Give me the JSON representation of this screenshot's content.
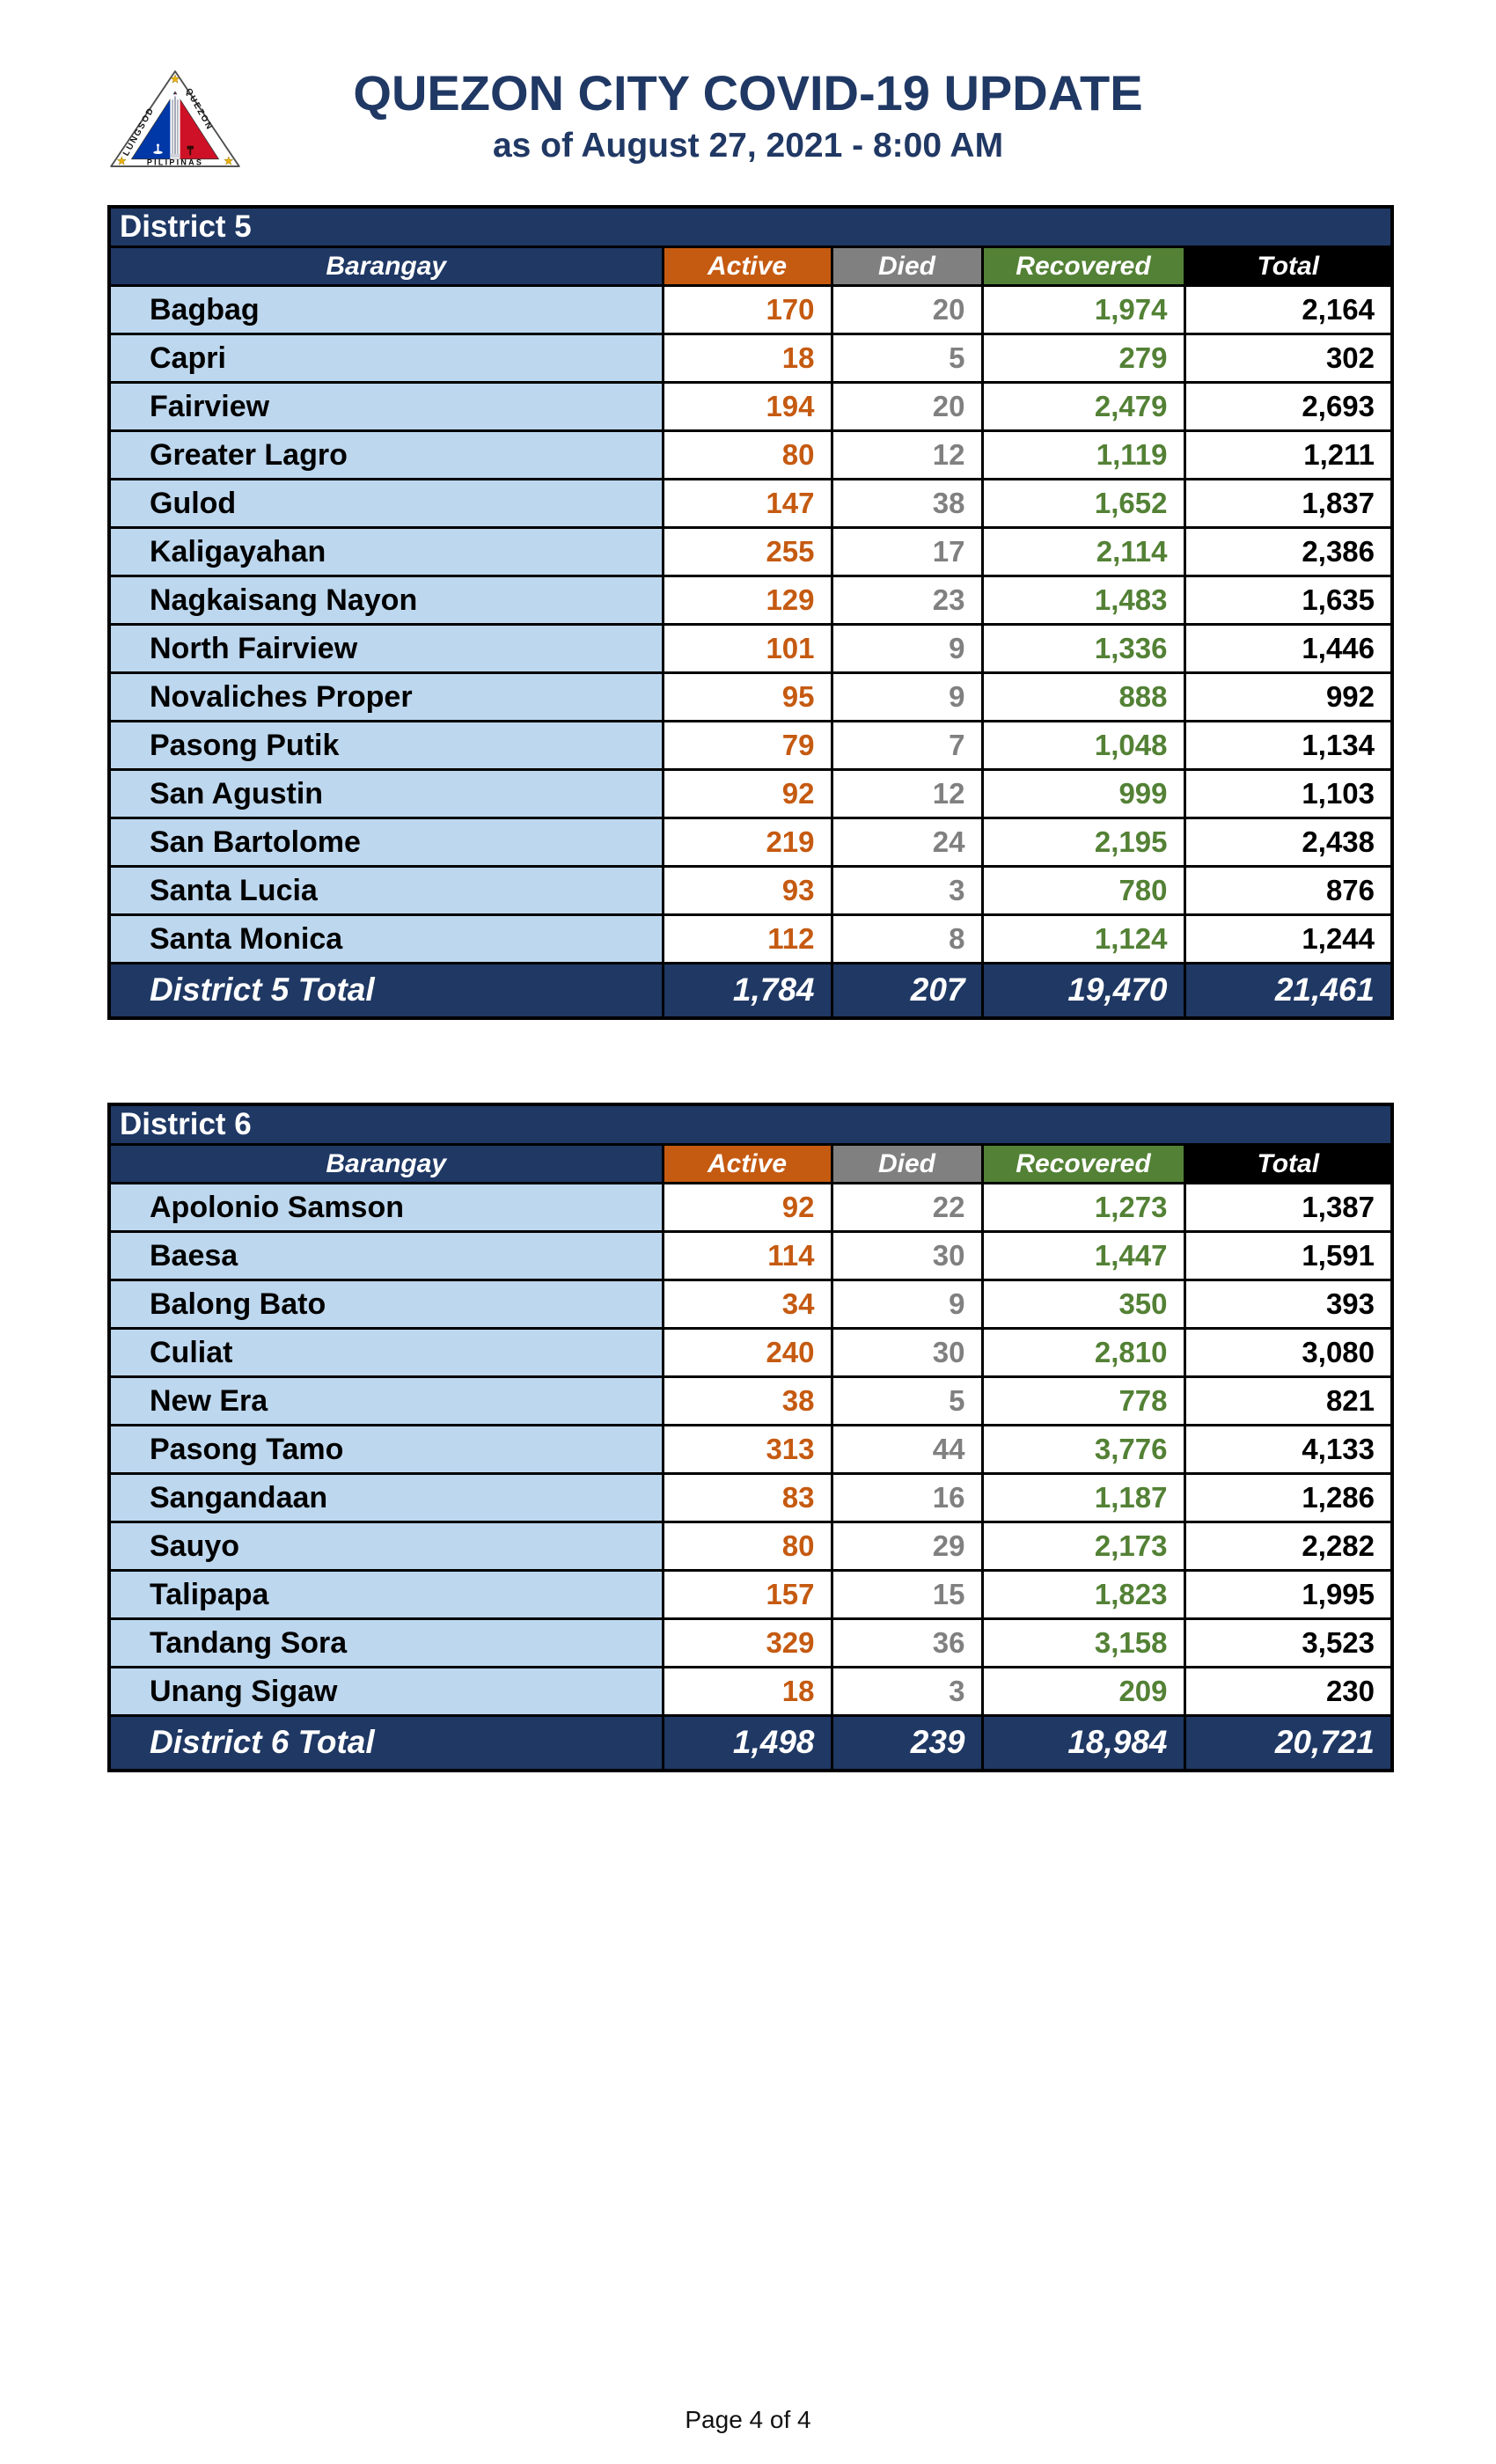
{
  "page": {
    "title": "QUEZON CITY COVID-19 UPDATE",
    "subtitle": "as of August 27, 2021 - 8:00 AM",
    "footer": "Page 4 of 4"
  },
  "logo": {
    "name": "quezon-city-seal",
    "arc_left": "LUNGSOD",
    "arc_right": "QUEZON",
    "bottom": "PILIPINAS",
    "colors": {
      "blue": "#0038A8",
      "red": "#CE1126",
      "star": "#E8B10E",
      "outline": "#4d4d4d"
    }
  },
  "colors": {
    "navy": "#1F3864",
    "orange": "#C55A11",
    "gray": "#808080",
    "green": "#538135",
    "row_blue": "#BDD7EE",
    "title_navy": "#203864"
  },
  "columns": [
    {
      "key": "barangay",
      "label": "Barangay",
      "bg": "#1F3864"
    },
    {
      "key": "active",
      "label": "Active",
      "bg": "#C55A11"
    },
    {
      "key": "died",
      "label": "Died",
      "bg": "#808080"
    },
    {
      "key": "recovered",
      "label": "Recovered",
      "bg": "#538135"
    },
    {
      "key": "total",
      "label": "Total",
      "bg": "#000000"
    }
  ],
  "tables": [
    {
      "district": "District 5",
      "rows": [
        [
          "Bagbag",
          "170",
          "20",
          "1,974",
          "2,164"
        ],
        [
          "Capri",
          "18",
          "5",
          "279",
          "302"
        ],
        [
          "Fairview",
          "194",
          "20",
          "2,479",
          "2,693"
        ],
        [
          "Greater Lagro",
          "80",
          "12",
          "1,119",
          "1,211"
        ],
        [
          "Gulod",
          "147",
          "38",
          "1,652",
          "1,837"
        ],
        [
          "Kaligayahan",
          "255",
          "17",
          "2,114",
          "2,386"
        ],
        [
          "Nagkaisang Nayon",
          "129",
          "23",
          "1,483",
          "1,635"
        ],
        [
          "North Fairview",
          "101",
          "9",
          "1,336",
          "1,446"
        ],
        [
          "Novaliches Proper",
          "95",
          "9",
          "888",
          "992"
        ],
        [
          "Pasong Putik",
          "79",
          "7",
          "1,048",
          "1,134"
        ],
        [
          "San Agustin",
          "92",
          "12",
          "999",
          "1,103"
        ],
        [
          "San Bartolome",
          "219",
          "24",
          "2,195",
          "2,438"
        ],
        [
          "Santa Lucia",
          "93",
          "3",
          "780",
          "876"
        ],
        [
          "Santa Monica",
          "112",
          "8",
          "1,124",
          "1,244"
        ]
      ],
      "total_row": [
        "District 5 Total",
        "1,784",
        "207",
        "19,470",
        "21,461"
      ]
    },
    {
      "district": "District 6",
      "rows": [
        [
          "Apolonio Samson",
          "92",
          "22",
          "1,273",
          "1,387"
        ],
        [
          "Baesa",
          "114",
          "30",
          "1,447",
          "1,591"
        ],
        [
          "Balong Bato",
          "34",
          "9",
          "350",
          "393"
        ],
        [
          "Culiat",
          "240",
          "30",
          "2,810",
          "3,080"
        ],
        [
          "New Era",
          "38",
          "5",
          "778",
          "821"
        ],
        [
          "Pasong Tamo",
          "313",
          "44",
          "3,776",
          "4,133"
        ],
        [
          "Sangandaan",
          "83",
          "16",
          "1,187",
          "1,286"
        ],
        [
          "Sauyo",
          "80",
          "29",
          "2,173",
          "2,282"
        ],
        [
          "Talipapa",
          "157",
          "15",
          "1,823",
          "1,995"
        ],
        [
          "Tandang Sora",
          "329",
          "36",
          "3,158",
          "3,523"
        ],
        [
          "Unang Sigaw",
          "18",
          "3",
          "209",
          "230"
        ]
      ],
      "total_row": [
        "District 6 Total",
        "1,498",
        "239",
        "18,984",
        "20,721"
      ]
    }
  ]
}
